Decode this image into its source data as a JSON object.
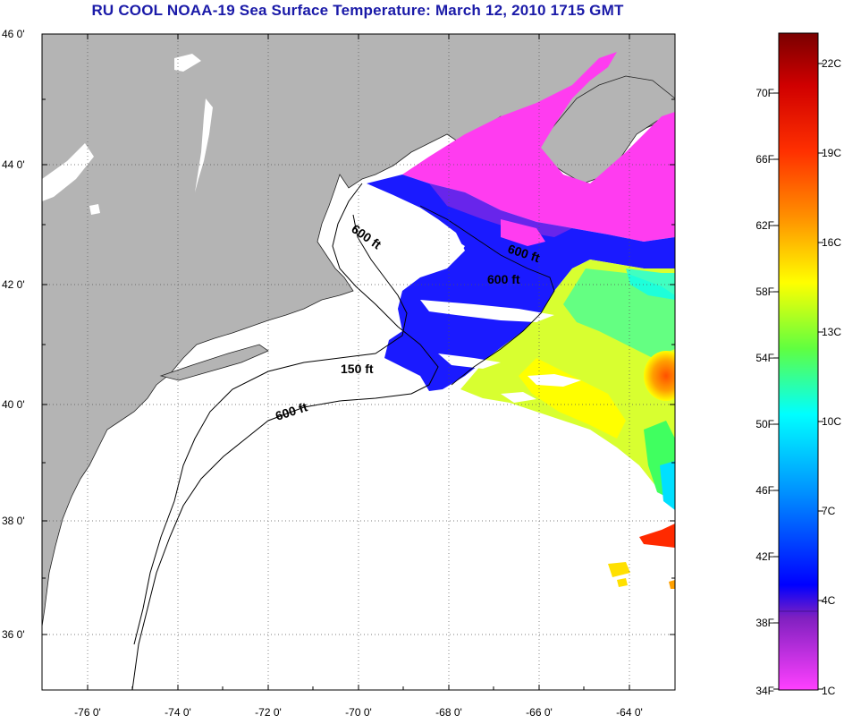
{
  "title": "RU COOL  NOAA-19  Sea Surface Temperature:  March 12, 2010 1715 GMT",
  "map": {
    "lon_range": [
      -77,
      -63
    ],
    "lat_range": [
      35,
      46
    ],
    "lat_ticks": [
      "46 0'",
      "44 0'",
      "42 0'",
      "40 0'",
      "38 0'",
      "36 0'"
    ],
    "lon_ticks": [
      "-76 0'",
      "-74 0'",
      "-72 0'",
      "-70 0'",
      "-68 0'",
      "-66 0'",
      "-64 0'"
    ],
    "grid": true,
    "land_color": "#b4b4b4",
    "cloud_color": "#ffffff",
    "contour_labels": [
      "600 ft",
      "600 ft",
      "600 ft",
      "150 ft",
      "600 ft"
    ]
  },
  "colorbar": {
    "fahrenheit_labels": [
      "70F",
      "66F",
      "62F",
      "58F",
      "54F",
      "50F",
      "46F",
      "42F",
      "38F",
      "34F"
    ],
    "celsius_labels": [
      "22C",
      "19C",
      "16C",
      "13C",
      "10C",
      "7C",
      "4C",
      "1C"
    ],
    "colors": [
      "#7a0000",
      "#ff0000",
      "#ff8c00",
      "#ffff00",
      "#40ff40",
      "#00ffff",
      "#0080ff",
      "#0000ff",
      "#a000c0",
      "#ff40ff"
    ]
  }
}
